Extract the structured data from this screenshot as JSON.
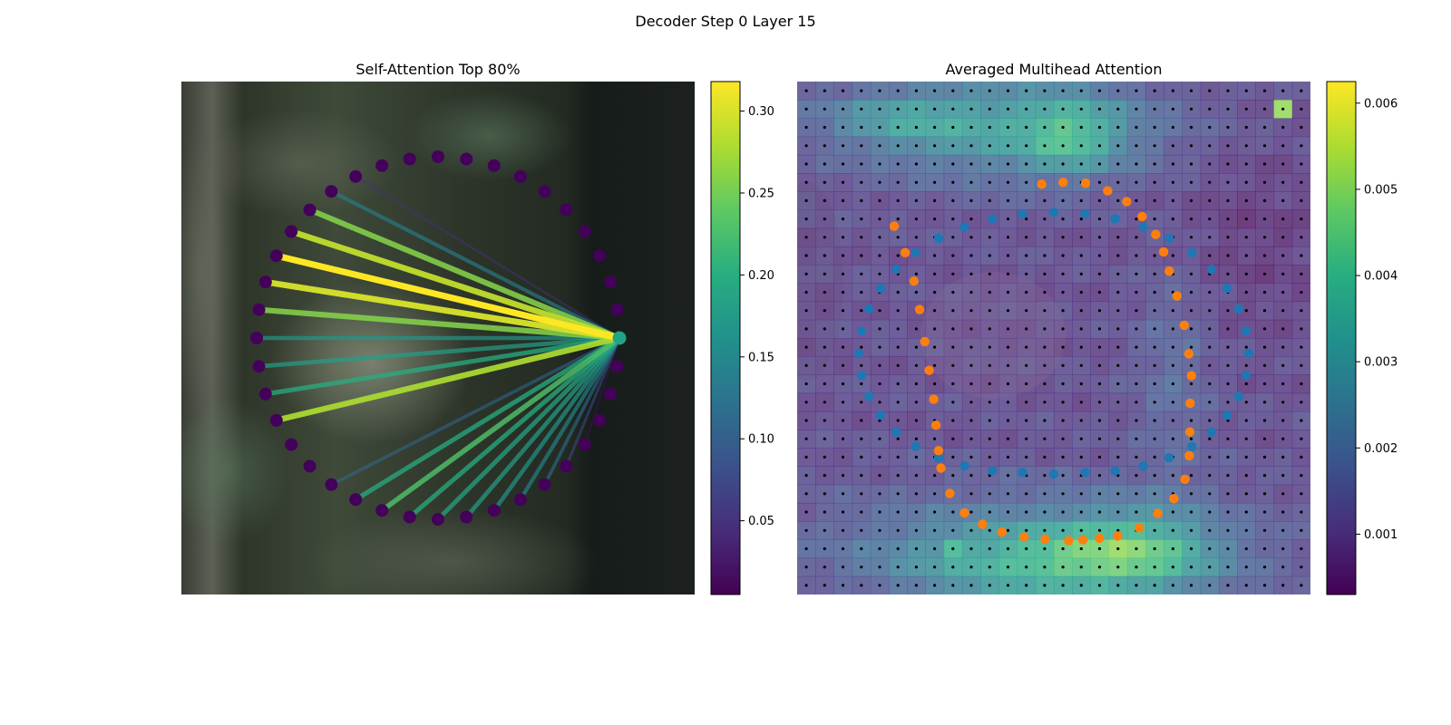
{
  "figure": {
    "title": "Decoder Step 0 Layer 15"
  },
  "chart_data": [
    {
      "type": "network",
      "title": "Self-Attention Top 80%",
      "node_count": 40,
      "query_node": 0,
      "node_color": "#44015a",
      "query_color": "#21a486",
      "background": "blurred grayscale-green photo",
      "edge_weights": [
        0,
        0,
        0,
        0,
        0.02,
        0.08,
        0.12,
        0.15,
        0.17,
        0.18,
        0.19,
        0.2,
        0.23,
        0.2,
        0.11,
        0,
        0,
        0.28,
        0.2,
        0.18,
        0.17,
        0.26,
        0.3,
        0.32,
        0.29,
        0.26,
        0.14,
        0.05,
        0,
        0,
        0,
        0,
        0,
        0,
        0,
        0,
        0,
        0,
        0,
        0
      ],
      "colorbar": {
        "colormap": "viridis",
        "range": [
          0.005,
          0.318
        ],
        "ticks": [
          "0.05",
          "0.10",
          "0.15",
          "0.20",
          "0.25",
          "0.30"
        ],
        "tick_values": [
          0.05,
          0.1,
          0.15,
          0.2,
          0.25,
          0.3
        ]
      }
    },
    {
      "type": "heatmap",
      "title": "Averaged Multihead Attention",
      "grid": [
        28,
        28
      ],
      "dot_grid": true,
      "series": [
        {
          "color": "#1f77b4",
          "points": [
            [
              0,
              -0.49
            ],
            [
              0.122,
              -0.484
            ],
            [
              0.239,
              -0.465
            ],
            [
              0.348,
              -0.433
            ],
            [
              0.449,
              -0.389
            ],
            [
              0.538,
              -0.333
            ],
            [
              0.614,
              -0.268
            ],
            [
              0.675,
              -0.194
            ],
            [
              0.72,
              -0.114
            ],
            [
              0.749,
              -0.028
            ],
            [
              0.76,
              0.06
            ],
            [
              0.749,
              0.146
            ],
            [
              0.72,
              0.228
            ],
            [
              0.675,
              0.301
            ],
            [
              0.614,
              0.367
            ],
            [
              0.538,
              0.423
            ],
            [
              0.449,
              0.467
            ],
            [
              0.348,
              0.499
            ],
            [
              0.239,
              0.518
            ],
            [
              0.122,
              0.524
            ],
            [
              0,
              0.53
            ],
            [
              -0.122,
              0.524
            ],
            [
              -0.239,
              0.518
            ],
            [
              -0.348,
              0.499
            ],
            [
              -0.449,
              0.467
            ],
            [
              -0.538,
              0.423
            ],
            [
              -0.614,
              0.367
            ],
            [
              -0.675,
              0.301
            ],
            [
              -0.72,
              0.228
            ],
            [
              -0.749,
              0.146
            ],
            [
              -0.76,
              0.06
            ],
            [
              -0.749,
              -0.028
            ],
            [
              -0.72,
              -0.114
            ],
            [
              -0.675,
              -0.194
            ],
            [
              -0.614,
              -0.268
            ],
            [
              -0.538,
              -0.333
            ],
            [
              -0.449,
              -0.389
            ],
            [
              -0.348,
              -0.433
            ],
            [
              -0.239,
              -0.465
            ],
            [
              -0.122,
              -0.484
            ]
          ]
        },
        {
          "color": "#ff7f0e",
          "points": [
            [
              -0.047,
              -0.6
            ],
            [
              0.036,
              -0.607
            ],
            [
              0.124,
              -0.604
            ],
            [
              0.21,
              -0.574
            ],
            [
              0.284,
              -0.532
            ],
            [
              0.344,
              -0.474
            ],
            [
              0.397,
              -0.404
            ],
            [
              0.428,
              -0.336
            ],
            [
              0.45,
              -0.261
            ],
            [
              0.48,
              -0.164
            ],
            [
              0.508,
              -0.05
            ],
            [
              0.526,
              0.062
            ],
            [
              0.536,
              0.147
            ],
            [
              0.531,
              0.254
            ],
            [
              0.53,
              0.366
            ],
            [
              0.528,
              0.459
            ],
            [
              0.511,
              0.551
            ],
            [
              0.468,
              0.626
            ],
            [
              0.405,
              0.684
            ],
            [
              0.333,
              0.74
            ],
            [
              0.249,
              0.772
            ],
            [
              0.178,
              0.781
            ],
            [
              0.113,
              0.787
            ],
            [
              0.058,
              0.79
            ],
            [
              -0.034,
              0.784
            ],
            [
              -0.116,
              0.776
            ],
            [
              -0.202,
              0.757
            ],
            [
              -0.278,
              0.726
            ],
            [
              -0.348,
              0.682
            ],
            [
              -0.405,
              0.606
            ],
            [
              -0.44,
              0.507
            ],
            [
              -0.449,
              0.439
            ],
            [
              -0.459,
              0.34
            ],
            [
              -0.468,
              0.239
            ],
            [
              -0.486,
              0.126
            ],
            [
              -0.503,
              0.014
            ],
            [
              -0.523,
              -0.111
            ],
            [
              -0.545,
              -0.222
            ],
            [
              -0.579,
              -0.333
            ],
            [
              -0.622,
              -0.436
            ]
          ]
        }
      ],
      "colorbar": {
        "colormap": "viridis",
        "range": [
          0.0003,
          0.00625
        ],
        "ticks": [
          "0.001",
          "0.002",
          "0.003",
          "0.004",
          "0.005",
          "0.006"
        ],
        "tick_values": [
          0.001,
          0.002,
          0.003,
          0.004,
          0.005,
          0.006
        ]
      }
    }
  ]
}
